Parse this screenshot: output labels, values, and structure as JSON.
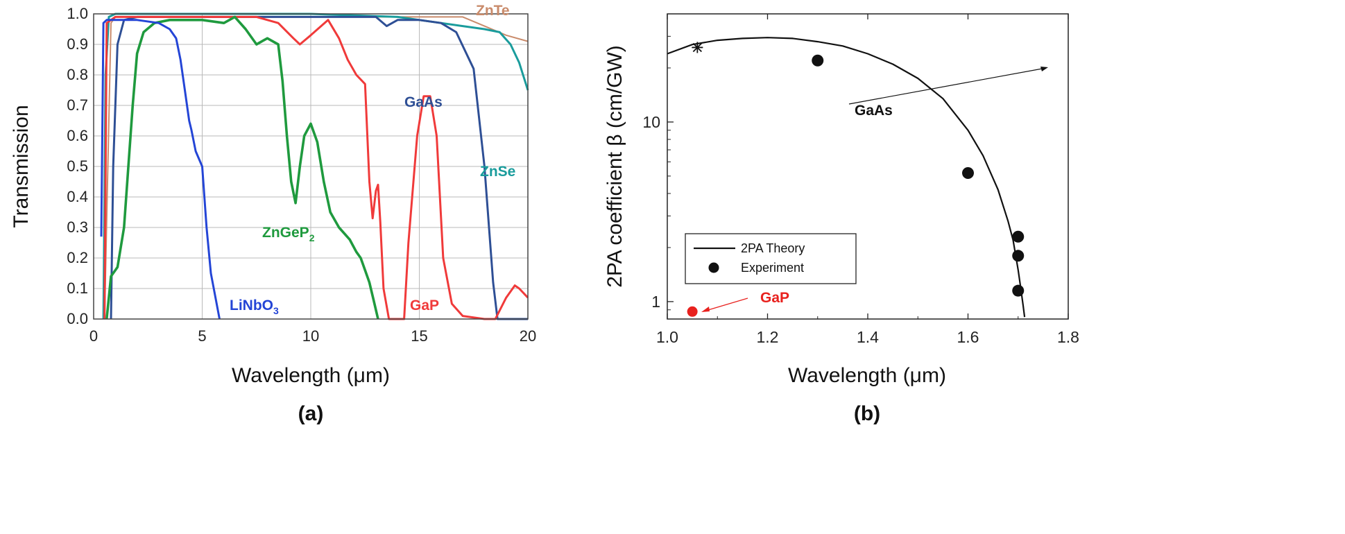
{
  "panel_a_label": "(a)",
  "panel_b_label": "(b)",
  "chart_data": [
    {
      "type": "line",
      "xlabel": "Wavelength (μm)",
      "ylabel": "Transmission",
      "xlim": [
        0,
        20
      ],
      "ylim": [
        0,
        1.0
      ],
      "xticks": [
        "0",
        "5",
        "10",
        "15",
        "20"
      ],
      "yticks": [
        "0.0",
        "0.1",
        "0.2",
        "0.3",
        "0.4",
        "0.5",
        "0.6",
        "0.7",
        "0.8",
        "0.9",
        "1.0"
      ],
      "grid": true,
      "series": [
        {
          "name": "ZnTe",
          "label_text": "ZnTe",
          "color": "#c98b6b",
          "x": [
            0.5,
            0.8,
            1,
            2,
            5,
            10,
            15,
            17,
            18,
            19,
            20
          ],
          "y": [
            0,
            0.97,
            0.99,
            0.99,
            0.99,
            0.99,
            0.99,
            0.99,
            0.96,
            0.93,
            0.91
          ]
        },
        {
          "name": "ZnSe",
          "label_text": "ZnSe",
          "color": "#1a9c9c",
          "x": [
            0.45,
            0.55,
            0.7,
            1,
            3,
            6,
            10,
            14,
            15,
            16,
            17,
            18,
            18.7,
            19.2,
            19.6,
            20
          ],
          "y": [
            0,
            0.8,
            0.99,
            1.0,
            1.0,
            1.0,
            1.0,
            0.99,
            0.98,
            0.97,
            0.96,
            0.95,
            0.94,
            0.9,
            0.84,
            0.75
          ]
        },
        {
          "name": "GaAs",
          "label_text": "GaAs",
          "color": "#2e4f95",
          "x": [
            0.8,
            0.9,
            1.1,
            1.4,
            2,
            5,
            10,
            13,
            13.5,
            14,
            15,
            16,
            16.7,
            17.5,
            18,
            18.4,
            18.6,
            20
          ],
          "y": [
            0,
            0.5,
            0.9,
            0.98,
            0.99,
            0.99,
            0.99,
            0.99,
            0.96,
            0.98,
            0.98,
            0.97,
            0.94,
            0.82,
            0.5,
            0.12,
            0,
            0
          ]
        },
        {
          "name": "GaP",
          "label_text": "GaP",
          "color": "#f03a3a",
          "x": [
            0.5,
            0.6,
            1,
            3,
            7.5,
            8.5,
            9.2,
            9.5,
            10,
            10.8,
            11.3,
            11.7,
            12.1,
            12.5,
            12.7,
            12.85,
            13.0,
            13.1,
            13.2,
            13.35,
            13.6,
            14.3,
            14.5,
            14.9,
            15.2,
            15.5,
            15.8,
            16.1,
            16.5,
            17,
            18,
            18.5,
            19,
            19.4,
            19.6,
            20
          ],
          "y": [
            0,
            0.97,
            0.99,
            0.99,
            0.99,
            0.97,
            0.92,
            0.9,
            0.93,
            0.98,
            0.92,
            0.85,
            0.8,
            0.77,
            0.45,
            0.33,
            0.42,
            0.44,
            0.32,
            0.1,
            0,
            0,
            0.25,
            0.6,
            0.73,
            0.73,
            0.6,
            0.2,
            0.05,
            0.01,
            0,
            0,
            0.07,
            0.11,
            0.1,
            0.07
          ]
        },
        {
          "name": "ZnGeP2",
          "label_text": "ZnGeP",
          "label_sub": "2",
          "color": "#1f9a3e",
          "x": [
            0.6,
            0.8,
            0.9,
            1.1,
            1.4,
            1.8,
            2,
            2.3,
            2.8,
            3.5,
            4,
            5,
            6,
            6.5,
            7,
            7.5,
            8,
            8.5,
            8.7,
            8.9,
            9.1,
            9.3,
            9.5,
            9.7,
            10,
            10.3,
            10.6,
            10.9,
            11.3,
            11.8,
            12.1,
            12.3,
            12.5,
            12.7,
            12.9,
            13.1
          ],
          "y": [
            0,
            0.14,
            0.15,
            0.17,
            0.3,
            0.7,
            0.87,
            0.94,
            0.97,
            0.98,
            0.98,
            0.98,
            0.97,
            0.99,
            0.95,
            0.9,
            0.92,
            0.9,
            0.78,
            0.6,
            0.45,
            0.38,
            0.5,
            0.6,
            0.64,
            0.58,
            0.45,
            0.35,
            0.3,
            0.26,
            0.22,
            0.2,
            0.16,
            0.12,
            0.06,
            0
          ]
        },
        {
          "name": "LiNbO3",
          "label_text": "LiNbO",
          "label_sub": "3",
          "color": "#2445d6",
          "x": [
            0.35,
            0.45,
            0.6,
            0.8,
            1,
            2,
            3,
            3.5,
            3.8,
            4,
            4.2,
            4.4,
            4.5,
            4.7,
            5,
            5.2,
            5.4,
            5.8
          ],
          "y": [
            0.27,
            0.97,
            0.98,
            0.98,
            0.98,
            0.98,
            0.97,
            0.95,
            0.92,
            0.85,
            0.75,
            0.65,
            0.62,
            0.55,
            0.5,
            0.3,
            0.15,
            0
          ]
        }
      ]
    },
    {
      "type": "scatter",
      "xlabel": "Wavelength (μm)",
      "ylabel": "2PA coefficient β (cm/GW)",
      "xlim": [
        1.0,
        1.8
      ],
      "ylim": [
        0.8,
        40
      ],
      "yscale": "log",
      "xticks": [
        "1.0",
        "1.2",
        "1.4",
        "1.6",
        "1.8"
      ],
      "yticks": [
        "1",
        "10"
      ],
      "legend": [
        "2PA Theory",
        "Experiment"
      ],
      "legend_position": "lower-left",
      "theory_curve": {
        "name": "2PA Theory",
        "x": [
          1.0,
          1.05,
          1.1,
          1.15,
          1.2,
          1.25,
          1.3,
          1.35,
          1.4,
          1.45,
          1.5,
          1.55,
          1.6,
          1.63,
          1.66,
          1.68,
          1.69,
          1.7,
          1.705,
          1.71,
          1.713
        ],
        "y": [
          24,
          27,
          28.5,
          29.2,
          29.5,
          29.2,
          28,
          26.5,
          24,
          21,
          17.5,
          13.5,
          9,
          6.5,
          4.2,
          2.8,
          2.2,
          1.5,
          1.2,
          0.95,
          0.82
        ]
      },
      "experiment": {
        "name": "Experiment",
        "x": [
          1.3,
          1.6,
          1.7,
          1.7,
          1.7
        ],
        "y": [
          22,
          5.2,
          2.3,
          1.8,
          1.15
        ]
      },
      "star_point": {
        "x": 1.06,
        "y": 26
      },
      "gap_point": {
        "name": "GaP",
        "x": 1.05,
        "y": 0.88,
        "color": "#e8211e"
      },
      "annotations": [
        {
          "text": "GaAs",
          "color": "#111111"
        },
        {
          "text": "GaP",
          "color": "#e8211e"
        }
      ]
    }
  ]
}
